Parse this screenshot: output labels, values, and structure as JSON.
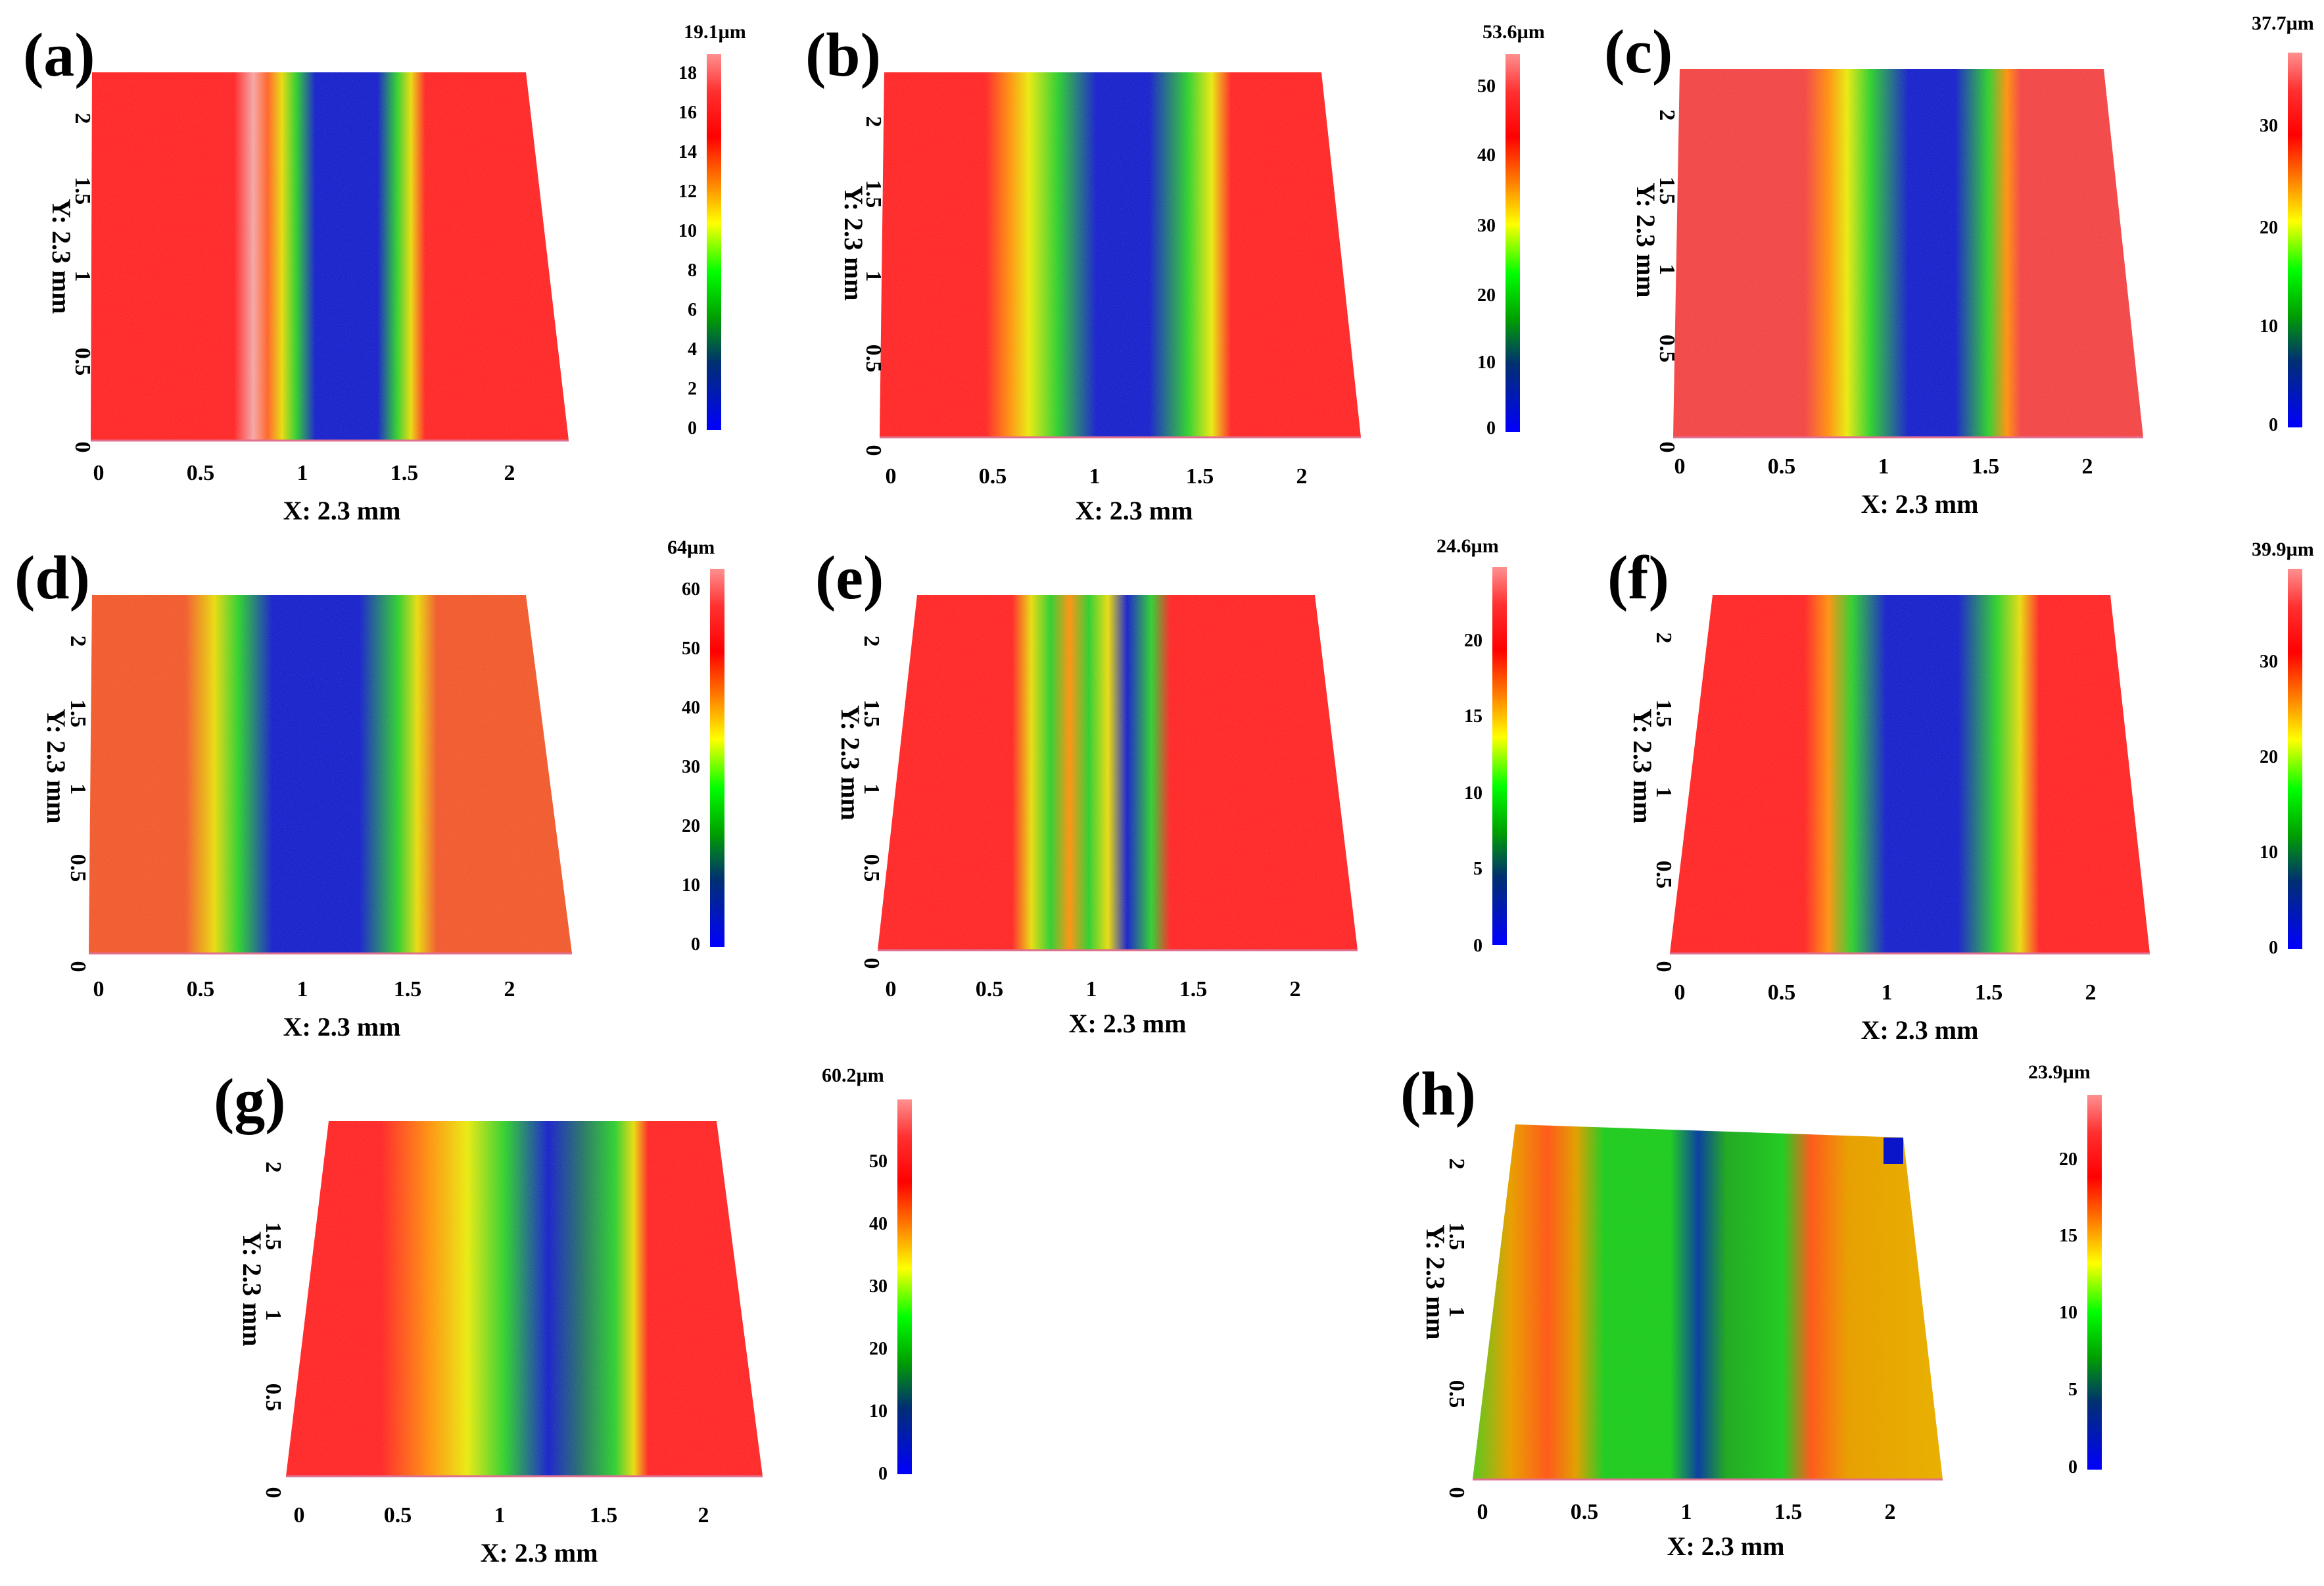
{
  "panels": [
    {
      "label": "(a)",
      "max": "19.1µm",
      "ticks": [
        "0",
        "2",
        "4",
        "6",
        "8",
        "10",
        "12",
        "14",
        "16",
        "18"
      ],
      "x_title": "X: 2.3 mm",
      "y_title": "Y: 2.3 mm",
      "x_ticks": [
        "0",
        "0.5",
        "1",
        "1.5",
        "2"
      ],
      "y_ticks": [
        "0",
        "0.5",
        "1",
        "1.5",
        "2"
      ]
    },
    {
      "label": "(b)",
      "max": "53.6µm",
      "ticks": [
        "0",
        "10",
        "20",
        "30",
        "40",
        "50"
      ],
      "x_title": "X: 2.3 mm",
      "y_title": "Y: 2.3 mm",
      "x_ticks": [
        "0",
        "0.5",
        "1",
        "1.5",
        "2"
      ],
      "y_ticks": [
        "0",
        "0.5",
        "1",
        "1.5",
        "2"
      ]
    },
    {
      "label": "(c)",
      "max": "37.7µm",
      "ticks": [
        "0",
        "10",
        "20",
        "30"
      ],
      "x_title": "X: 2.3 mm",
      "y_title": "Y: 2.3 mm",
      "x_ticks": [
        "0",
        "0.5",
        "1",
        "1.5",
        "2"
      ],
      "y_ticks": [
        "0",
        "0.5",
        "1",
        "1.5",
        "2"
      ]
    },
    {
      "label": "(d)",
      "max": "64µm",
      "ticks": [
        "0",
        "10",
        "20",
        "30",
        "40",
        "50",
        "60"
      ],
      "x_title": "X: 2.3 mm",
      "y_title": "Y: 2.3 mm",
      "x_ticks": [
        "0",
        "0.5",
        "1",
        "1.5",
        "2"
      ],
      "y_ticks": [
        "0",
        "0.5",
        "1",
        "1.5",
        "2"
      ]
    },
    {
      "label": "(e)",
      "max": "24.6µm",
      "ticks": [
        "0",
        "5",
        "10",
        "15",
        "20"
      ],
      "x_title": "X: 2.3 mm",
      "y_title": "Y: 2.3 mm",
      "x_ticks": [
        "0",
        "0.5",
        "1",
        "1.5",
        "2"
      ],
      "y_ticks": [
        "0",
        "0.5",
        "1",
        "1.5",
        "2"
      ]
    },
    {
      "label": "(f)",
      "max": "39.9µm",
      "ticks": [
        "0",
        "10",
        "20",
        "30"
      ],
      "x_title": "X: 2.3 mm",
      "y_title": "Y: 2.3 mm",
      "x_ticks": [
        "0",
        "0.5",
        "1",
        "1.5",
        "2"
      ],
      "y_ticks": [
        "0",
        "0.5",
        "1",
        "1.5",
        "2"
      ]
    },
    {
      "label": "(g)",
      "max": "60.2µm",
      "ticks": [
        "0",
        "10",
        "20",
        "30",
        "40",
        "50"
      ],
      "x_title": "X: 2.3 mm",
      "y_title": "Y: 2.3 mm",
      "x_ticks": [
        "0",
        "0.5",
        "1",
        "1.5",
        "2"
      ],
      "y_ticks": [
        "0",
        "0.5",
        "1",
        "1.5",
        "2"
      ]
    },
    {
      "label": "(h)",
      "max": "23.9µm",
      "ticks": [
        "0",
        "5",
        "10",
        "15",
        "20"
      ],
      "x_title": "X: 2.3 mm",
      "y_title": "Y: 2.3 mm",
      "x_ticks": [
        "0",
        "0.5",
        "1",
        "1.5",
        "2"
      ],
      "y_ticks": [
        "0",
        "0.5",
        "1",
        "1.5",
        "2"
      ]
    }
  ],
  "colors": {
    "red": "#ff1a1a",
    "orange": "#ff8a00",
    "yellow": "#e8e800",
    "green": "#22cc22",
    "blue": "#0a14c8",
    "cbar_top": "#ff8080"
  }
}
